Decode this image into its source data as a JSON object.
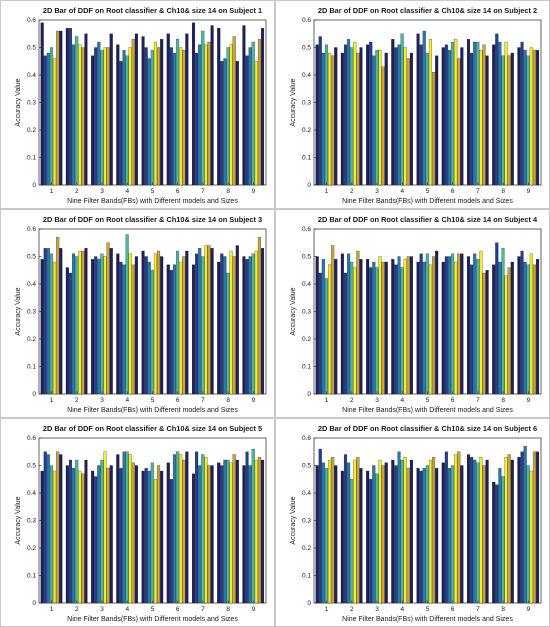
{
  "colors": [
    "#1f1f5c",
    "#1f3f8f",
    "#2a78a8",
    "#4db8a0",
    "#f5ec2a",
    "#c8a63c"
  ],
  "chart_data": [
    {
      "type": "bar",
      "title": "2D Bar of DDF on Root classifier & Ch10& size 14 on Subject 1",
      "xlabel": "Nine Filter Bands(FBs) with Different models and Sizes",
      "ylabel": "Accuracy Value",
      "ylim": [
        0,
        0.6
      ],
      "yticks": [
        "0",
        "0.1",
        "0.2",
        "0.3",
        "0.4",
        "0.5",
        "0.6"
      ],
      "categories": [
        "1",
        "2",
        "3",
        "4",
        "5",
        "6",
        "7",
        "8",
        "9"
      ],
      "values": [
        [
          0.59,
          0.47,
          0.48,
          0.5,
          0.46,
          0.56,
          0.56
        ],
        [
          0.57,
          0.57,
          0.51,
          0.54,
          0.51,
          0.5,
          0.55
        ],
        [
          0.47,
          0.5,
          0.52,
          0.49,
          0.5,
          0.5,
          0.55
        ],
        [
          0.51,
          0.45,
          0.49,
          0.47,
          0.5,
          0.53,
          0.55
        ],
        [
          0.54,
          0.5,
          0.46,
          0.49,
          0.52,
          0.5,
          0.53
        ],
        [
          0.55,
          0.5,
          0.48,
          0.53,
          0.5,
          0.49,
          0.55
        ],
        [
          0.59,
          0.48,
          0.51,
          0.56,
          0.51,
          0.52,
          0.58
        ],
        [
          0.57,
          0.45,
          0.46,
          0.5,
          0.51,
          0.54,
          0.45
        ],
        [
          0.58,
          0.47,
          0.5,
          0.52,
          0.45,
          0.53,
          0.57
        ]
      ]
    },
    {
      "type": "bar",
      "title": "2D Bar of DDF on Root classifier & Ch10& size 14 on Subject 2",
      "xlabel": "Nine Filter Bands(FBs) with Different models and Sizes",
      "ylabel": "Accuracy Value",
      "ylim": [
        0,
        0.6
      ],
      "yticks": [
        "0",
        "0.1",
        "0.2",
        "0.3",
        "0.4",
        "0.5",
        "0.6"
      ],
      "categories": [
        "1",
        "2",
        "3",
        "4",
        "5",
        "6",
        "7",
        "8",
        "9"
      ],
      "values": [
        [
          0.51,
          0.54,
          0.48,
          0.51,
          0.48,
          0.47,
          0.5
        ],
        [
          0.48,
          0.51,
          0.53,
          0.5,
          0.52,
          0.48,
          0.5
        ],
        [
          0.51,
          0.52,
          0.47,
          0.49,
          0.49,
          0.43,
          0.48
        ],
        [
          0.53,
          0.5,
          0.51,
          0.55,
          0.5,
          0.46,
          0.48
        ],
        [
          0.55,
          0.51,
          0.56,
          0.48,
          0.53,
          0.41,
          0.47
        ],
        [
          0.5,
          0.51,
          0.49,
          0.52,
          0.53,
          0.46,
          0.5
        ],
        [
          0.53,
          0.48,
          0.52,
          0.52,
          0.49,
          0.51,
          0.47
        ],
        [
          0.51,
          0.55,
          0.52,
          0.47,
          0.52,
          0.47,
          0.48
        ],
        [
          0.5,
          0.52,
          0.49,
          0.47,
          0.5,
          0.49,
          0.49
        ]
      ]
    },
    {
      "type": "bar",
      "title": "2D Bar of DDF on Root classifier & Ch10& size 14 on Subject 3",
      "xlabel": "Nine Filter Bands(FBs) with Different models and Sizes",
      "ylabel": "Accuracy Value",
      "ylim": [
        0,
        0.6
      ],
      "yticks": [
        "0",
        "0.1",
        "0.2",
        "0.3",
        "0.4",
        "0.5",
        "0.6"
      ],
      "categories": [
        "1",
        "2",
        "3",
        "4",
        "5",
        "6",
        "7",
        "8",
        "9"
      ],
      "values": [
        [
          0.49,
          0.53,
          0.53,
          0.51,
          0.48,
          0.57,
          0.53
        ],
        [
          0.46,
          0.44,
          0.51,
          0.5,
          0.52,
          0.52,
          0.53
        ],
        [
          0.49,
          0.5,
          0.49,
          0.51,
          0.5,
          0.55,
          0.53
        ],
        [
          0.51,
          0.48,
          0.47,
          0.58,
          0.51,
          0.47,
          0.5
        ],
        [
          0.52,
          0.5,
          0.48,
          0.45,
          0.51,
          0.52,
          0.5
        ],
        [
          0.47,
          0.45,
          0.47,
          0.52,
          0.48,
          0.5,
          0.52
        ],
        [
          0.47,
          0.51,
          0.53,
          0.5,
          0.54,
          0.54,
          0.53
        ],
        [
          0.48,
          0.51,
          0.5,
          0.44,
          0.52,
          0.5,
          0.54
        ],
        [
          0.5,
          0.49,
          0.5,
          0.51,
          0.52,
          0.57,
          0.53
        ]
      ]
    },
    {
      "type": "bar",
      "title": "2D Bar of DDF on Root classifier & Ch10& size 14 on Subject 4",
      "xlabel": "Nine Filter Bands(FBs) with Different models and Sizes",
      "ylabel": "Accuracy Value",
      "ylim": [
        0,
        0.6
      ],
      "yticks": [
        "0",
        "0.1",
        "0.2",
        "0.3",
        "0.4",
        "0.5",
        "0.6"
      ],
      "categories": [
        "1",
        "2",
        "3",
        "4",
        "5",
        "6",
        "7",
        "8",
        "9"
      ],
      "values": [
        [
          0.5,
          0.44,
          0.49,
          0.42,
          0.47,
          0.54,
          0.49
        ],
        [
          0.51,
          0.44,
          0.51,
          0.48,
          0.46,
          0.52,
          0.49
        ],
        [
          0.49,
          0.46,
          0.48,
          0.46,
          0.5,
          0.48,
          0.48
        ],
        [
          0.49,
          0.47,
          0.5,
          0.46,
          0.49,
          0.5,
          0.5
        ],
        [
          0.48,
          0.51,
          0.48,
          0.51,
          0.47,
          0.5,
          0.52
        ],
        [
          0.48,
          0.5,
          0.5,
          0.51,
          0.48,
          0.51,
          0.51
        ],
        [
          0.5,
          0.47,
          0.51,
          0.49,
          0.52,
          0.44,
          0.45
        ],
        [
          0.47,
          0.55,
          0.48,
          0.53,
          0.43,
          0.46,
          0.48
        ],
        [
          0.5,
          0.52,
          0.48,
          0.47,
          0.51,
          0.47,
          0.49
        ]
      ]
    },
    {
      "type": "bar",
      "title": "2D Bar of DDF on Root classifier & Ch10& size 14 on Subject 5",
      "xlabel": "Nine Filter Bands(FBs) with Different models and Sizes",
      "ylabel": "Accuracy Value",
      "ylim": [
        0,
        0.6
      ],
      "yticks": [
        "0",
        "0.1",
        "0.2",
        "0.3",
        "0.4",
        "0.5",
        "0.6"
      ],
      "categories": [
        "1",
        "2",
        "3",
        "4",
        "5",
        "6",
        "7",
        "8",
        "9"
      ],
      "values": [
        [
          0.48,
          0.55,
          0.54,
          0.5,
          0.48,
          0.55,
          0.54
        ],
        [
          0.5,
          0.52,
          0.49,
          0.52,
          0.48,
          0.47,
          0.52
        ],
        [
          0.48,
          0.46,
          0.5,
          0.52,
          0.55,
          0.49,
          0.5
        ],
        [
          0.54,
          0.49,
          0.55,
          0.55,
          0.54,
          0.51,
          0.5
        ],
        [
          0.48,
          0.49,
          0.48,
          0.51,
          0.45,
          0.5,
          0.48
        ],
        [
          0.51,
          0.45,
          0.54,
          0.55,
          0.54,
          0.52,
          0.55
        ],
        [
          0.47,
          0.55,
          0.5,
          0.54,
          0.53,
          0.5,
          0.5
        ],
        [
          0.51,
          0.5,
          0.52,
          0.52,
          0.51,
          0.54,
          0.52
        ],
        [
          0.5,
          0.55,
          0.5,
          0.56,
          0.52,
          0.53,
          0.52
        ]
      ]
    },
    {
      "type": "bar",
      "title": "2D Bar of DDF on Root classifier & Ch10& size 14 on Subject 6",
      "xlabel": "Nine Filter Bands(FBs) with Different models and Sizes",
      "ylabel": "Accuracy Value",
      "ylim": [
        0,
        0.6
      ],
      "yticks": [
        "0",
        "0.1",
        "0.2",
        "0.3",
        "0.4",
        "0.5",
        "0.6"
      ],
      "categories": [
        "1",
        "2",
        "3",
        "4",
        "5",
        "6",
        "7",
        "8",
        "9"
      ],
      "values": [
        [
          0.5,
          0.56,
          0.51,
          0.49,
          0.52,
          0.53,
          0.5
        ],
        [
          0.48,
          0.54,
          0.51,
          0.45,
          0.52,
          0.53,
          0.49
        ],
        [
          0.48,
          0.45,
          0.5,
          0.47,
          0.52,
          0.5,
          0.51
        ],
        [
          0.52,
          0.5,
          0.55,
          0.52,
          0.53,
          0.49,
          0.52
        ],
        [
          0.49,
          0.48,
          0.49,
          0.5,
          0.52,
          0.53,
          0.49
        ],
        [
          0.51,
          0.55,
          0.49,
          0.5,
          0.54,
          0.55,
          0.5
        ],
        [
          0.54,
          0.53,
          0.52,
          0.51,
          0.53,
          0.5,
          0.52
        ],
        [
          0.44,
          0.43,
          0.49,
          0.46,
          0.53,
          0.54,
          0.52
        ],
        [
          0.53,
          0.55,
          0.57,
          0.5,
          0.48,
          0.55,
          0.55
        ]
      ]
    }
  ]
}
